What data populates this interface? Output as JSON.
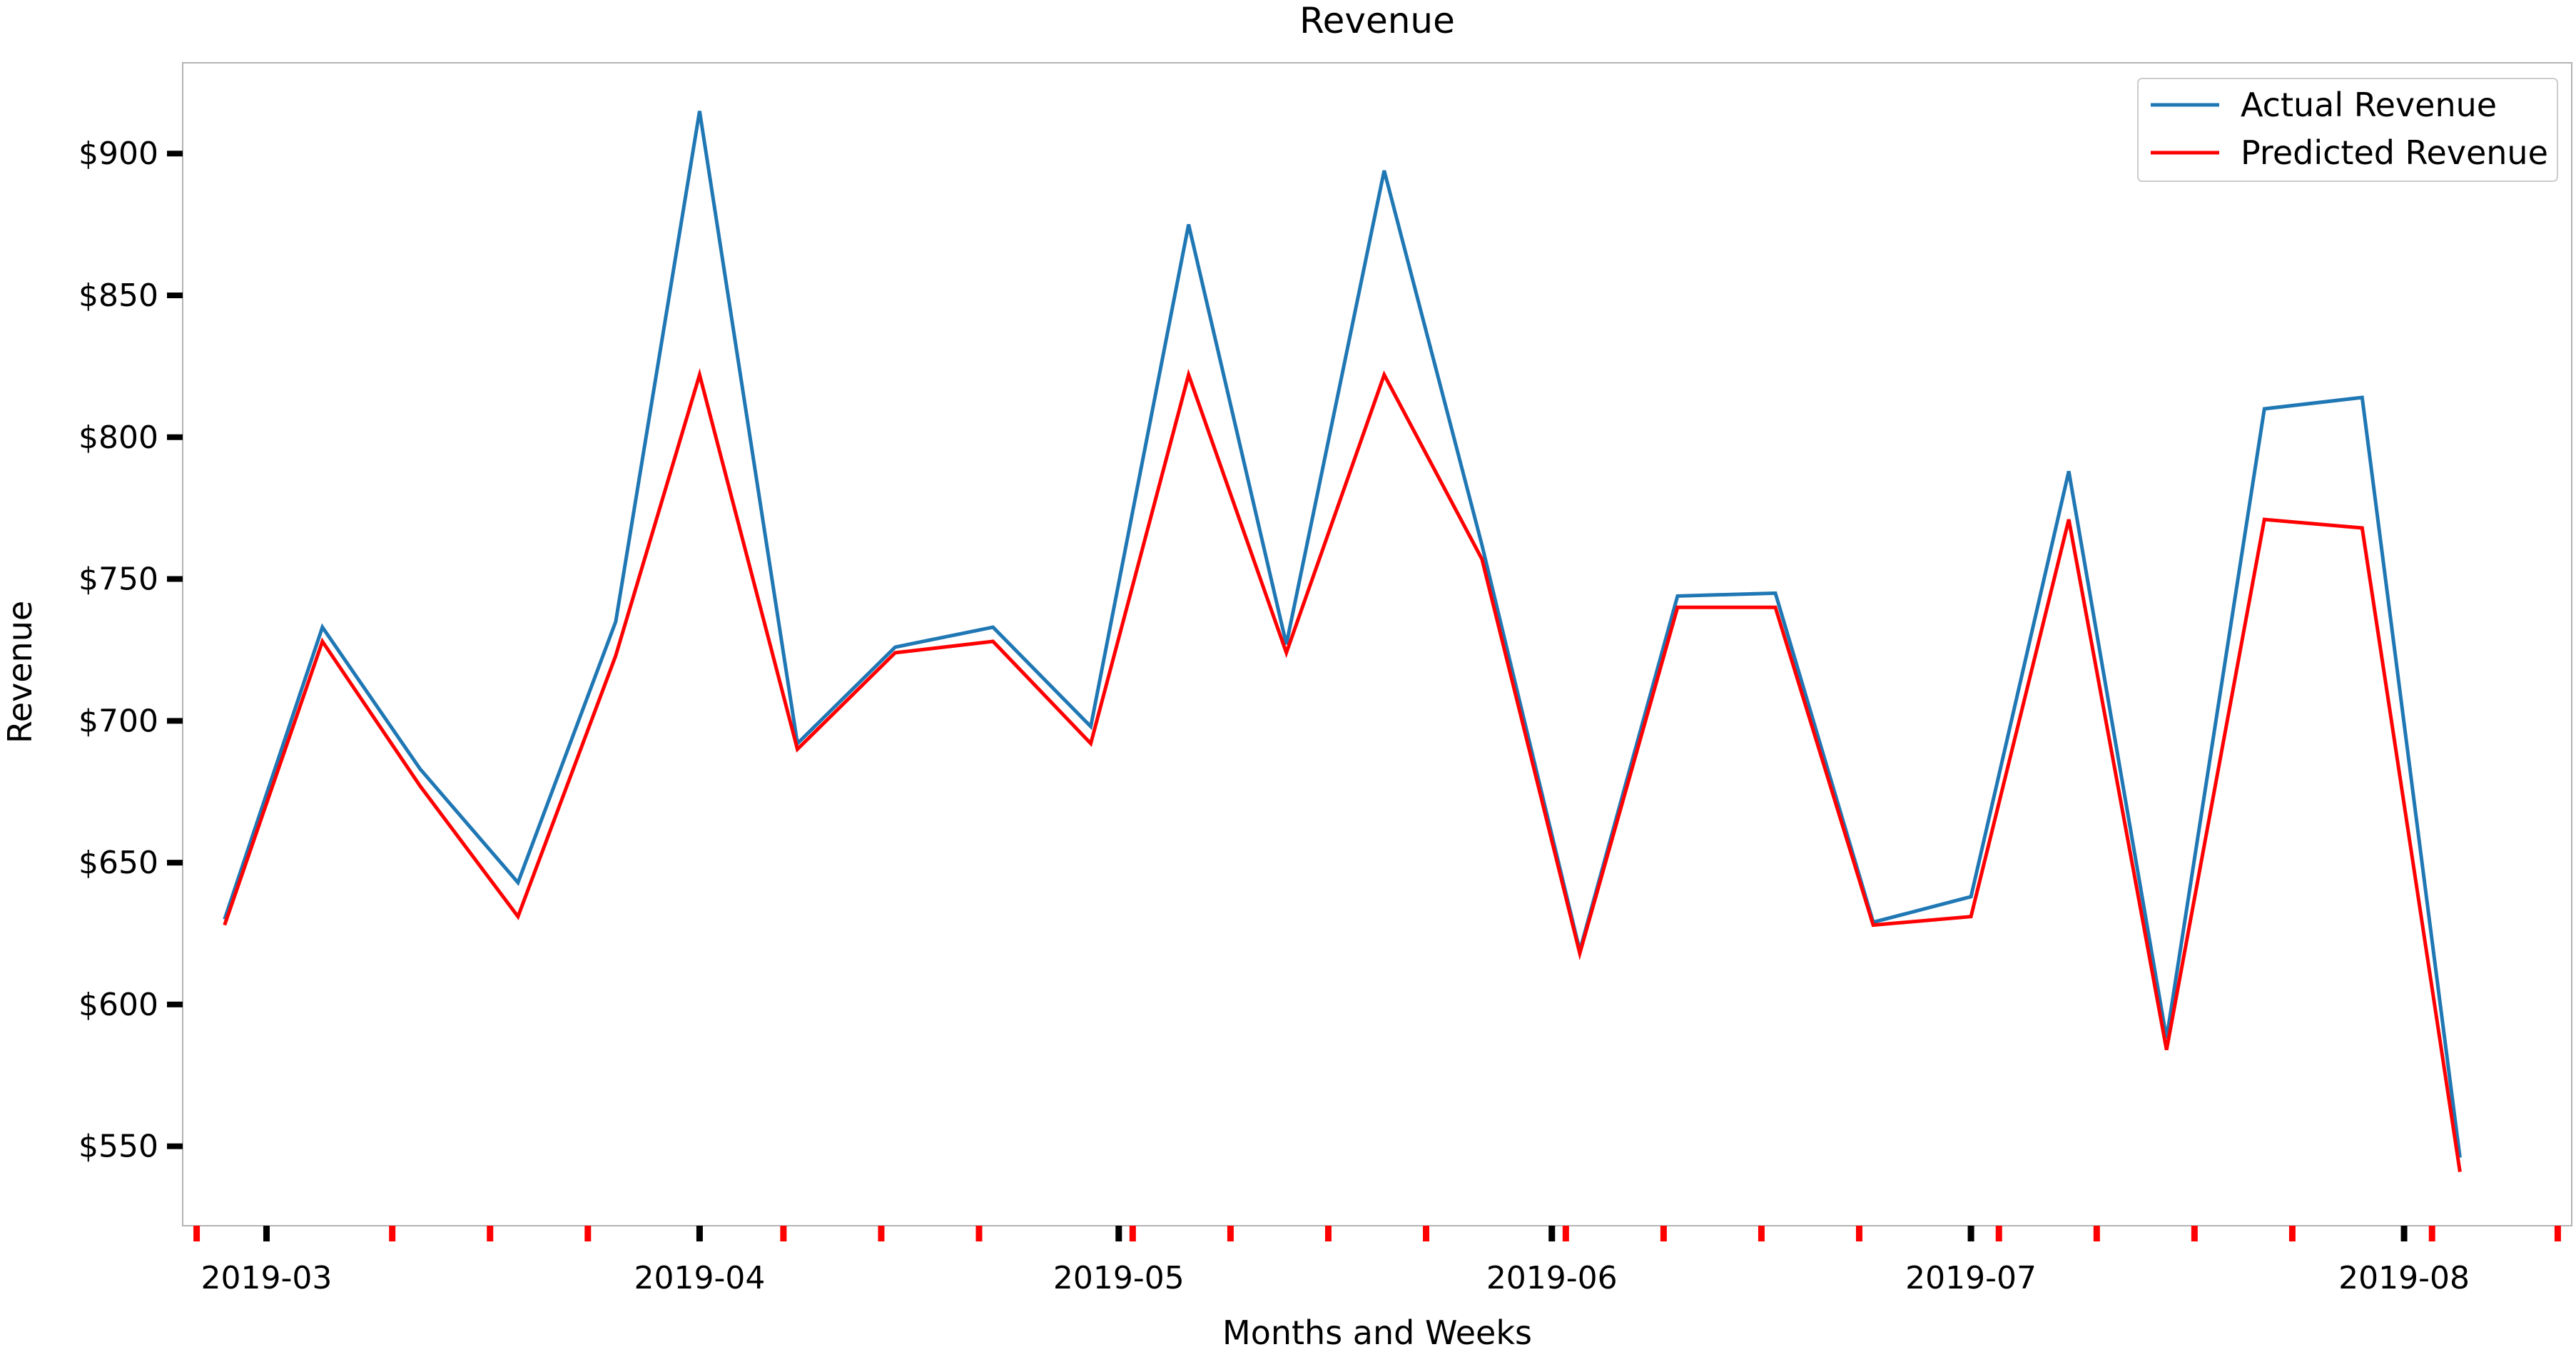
{
  "chart_data": {
    "type": "line",
    "title": "Revenue",
    "xlabel": "Months and Weeks",
    "ylabel": "Revenue",
    "grid": false,
    "legend_position": "top-right",
    "x_range": [
      "2019-02-23",
      "2019-08-13"
    ],
    "ylim": [
      522,
      932
    ],
    "y_ticks": [
      550,
      600,
      650,
      700,
      750,
      800,
      850,
      900
    ],
    "y_tick_labels": [
      "$550",
      "$600",
      "$650",
      "$700",
      "$750",
      "$800",
      "$850",
      "$900"
    ],
    "x_month_ticks": [
      "2019-03-01",
      "2019-04-01",
      "2019-05-01",
      "2019-06-01",
      "2019-07-01",
      "2019-08-01"
    ],
    "x_month_labels": [
      "2019-03",
      "2019-04",
      "2019-05",
      "2019-06",
      "2019-07",
      "2019-08"
    ],
    "x_week_ticks": [
      "2019-02-24",
      "2019-03-10",
      "2019-03-17",
      "2019-03-24",
      "2019-04-07",
      "2019-04-14",
      "2019-04-21",
      "2019-05-02",
      "2019-05-09",
      "2019-05-16",
      "2019-05-23",
      "2019-06-02",
      "2019-06-09",
      "2019-06-16",
      "2019-06-23",
      "2019-07-03",
      "2019-07-10",
      "2019-07-17",
      "2019-07-24",
      "2019-08-03",
      "2019-08-12"
    ],
    "x": [
      "2019-02-26",
      "2019-03-05",
      "2019-03-12",
      "2019-03-19",
      "2019-03-26",
      "2019-04-01",
      "2019-04-08",
      "2019-04-15",
      "2019-04-22",
      "2019-04-29",
      "2019-05-06",
      "2019-05-13",
      "2019-05-20",
      "2019-05-27",
      "2019-06-03",
      "2019-06-10",
      "2019-06-17",
      "2019-06-24",
      "2019-07-01",
      "2019-07-08",
      "2019-07-15",
      "2019-07-22",
      "2019-07-29",
      "2019-08-05"
    ],
    "series": [
      {
        "name": "Actual Revenue",
        "color": "#1f77b4",
        "values": [
          630,
          733,
          683,
          643,
          735,
          915,
          692,
          726,
          733,
          698,
          875,
          727,
          894,
          762,
          619,
          744,
          745,
          629,
          638,
          788,
          588,
          810,
          814,
          546
        ]
      },
      {
        "name": "Predicted Revenue",
        "color": "#ff0000",
        "values": [
          628,
          728,
          677,
          631,
          723,
          822,
          690,
          724,
          728,
          692,
          822,
          724,
          822,
          757,
          618,
          740,
          740,
          628,
          631,
          771,
          584,
          771,
          768,
          541
        ]
      }
    ]
  }
}
